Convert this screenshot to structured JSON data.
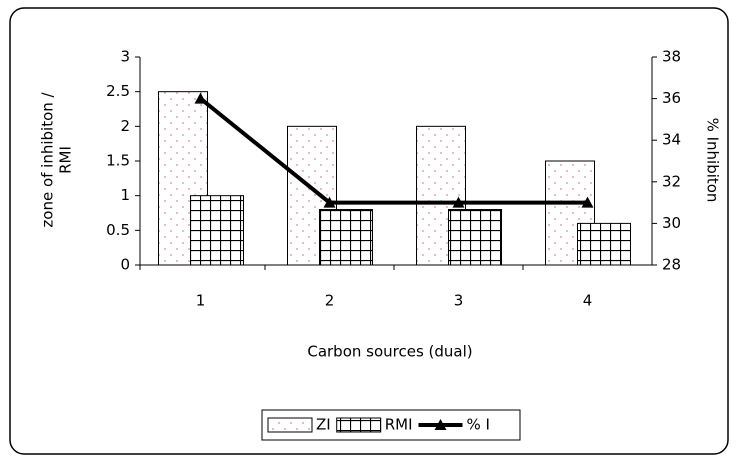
{
  "chart_data": {
    "type": "bar-line",
    "categories": [
      "1",
      "2",
      "3",
      "4"
    ],
    "series": [
      {
        "name": "ZI",
        "type": "bar",
        "color": "#d98aa0",
        "values": [
          2.5,
          2,
          2,
          1.5
        ]
      },
      {
        "name": "RMI",
        "type": "bar",
        "color": "#000000",
        "values": [
          1,
          0.8,
          0.8,
          0.6
        ]
      },
      {
        "name": "% I",
        "type": "line",
        "axis": "y2",
        "color": "#000000",
        "values": [
          36,
          31,
          31,
          31
        ]
      }
    ],
    "ylim": [
      0,
      3
    ],
    "yticks": [
      0,
      0.5,
      1,
      1.5,
      2,
      2.5,
      3
    ],
    "y2lim": [
      28,
      38
    ],
    "y2ticks": [
      28,
      30,
      32,
      34,
      36,
      38
    ],
    "xlabel": "Carbon sources (dual)",
    "ylabel": [
      "zone of inhibiton /",
      "RMI"
    ],
    "y2label": "% Inhibiton",
    "legend": "bottom",
    "grid": false
  }
}
